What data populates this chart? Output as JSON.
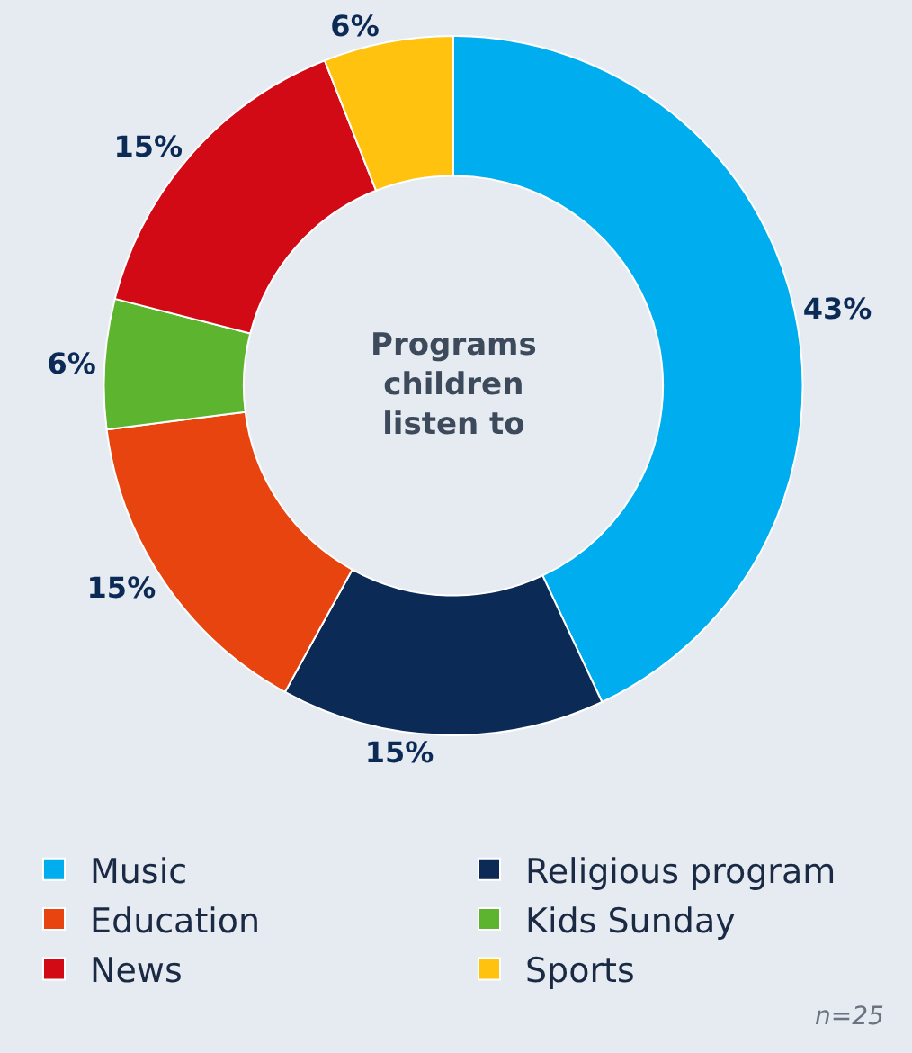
{
  "chart_data": {
    "type": "donut",
    "title": "Programs children listen to",
    "categories": [
      "Music",
      "Religious program",
      "Education",
      "Kids Sunday",
      "News",
      "Sports"
    ],
    "values": [
      43,
      15,
      15,
      6,
      15,
      6
    ],
    "value_labels": [
      "43%",
      "15%",
      "15%",
      "6%",
      "15%",
      "6%"
    ],
    "colors": [
      "#00aeef",
      "#0b2a55",
      "#e8440f",
      "#5db52f",
      "#d20a15",
      "#ffc20e"
    ],
    "legend": "bottom",
    "annotations": [
      "n=25"
    ]
  }
}
